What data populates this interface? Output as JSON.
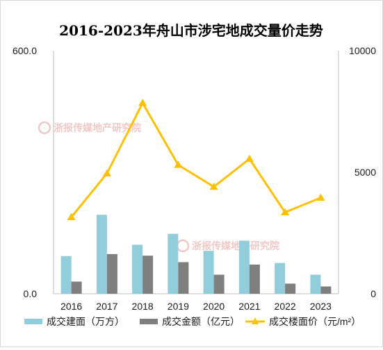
{
  "chart_data": {
    "type": "bar",
    "title": "2016-2023年舟山市涉宅地成交量价走势",
    "categories": [
      "2016",
      "2017",
      "2018",
      "2019",
      "2020",
      "2021",
      "2022",
      "2023"
    ],
    "y_left": {
      "min": 0,
      "max": 600,
      "ticks": [
        "0.0",
        "600.0"
      ]
    },
    "y_right": {
      "min": 0,
      "max": 10000,
      "ticks": [
        "0",
        "5000",
        "10000"
      ]
    },
    "series": [
      {
        "name": "成交建面（万方）",
        "type": "bar",
        "axis": "left",
        "color": "#92cddc",
        "values": [
          93,
          195,
          121,
          148,
          106,
          131,
          76,
          47
        ]
      },
      {
        "name": "成交金额（亿元）",
        "type": "bar",
        "axis": "left",
        "color": "#7f7f7f",
        "values": [
          30,
          98,
          94,
          78,
          47,
          72,
          25,
          18
        ]
      },
      {
        "name": "成交楼面价（元/m²）",
        "type": "line",
        "axis": "right",
        "color": "#ffc000",
        "values": [
          3150,
          4950,
          7850,
          5300,
          4400,
          5550,
          3350,
          3950
        ]
      }
    ],
    "watermark": "浙报传媒地产研究院",
    "legend_position": "bottom",
    "grid": false
  }
}
